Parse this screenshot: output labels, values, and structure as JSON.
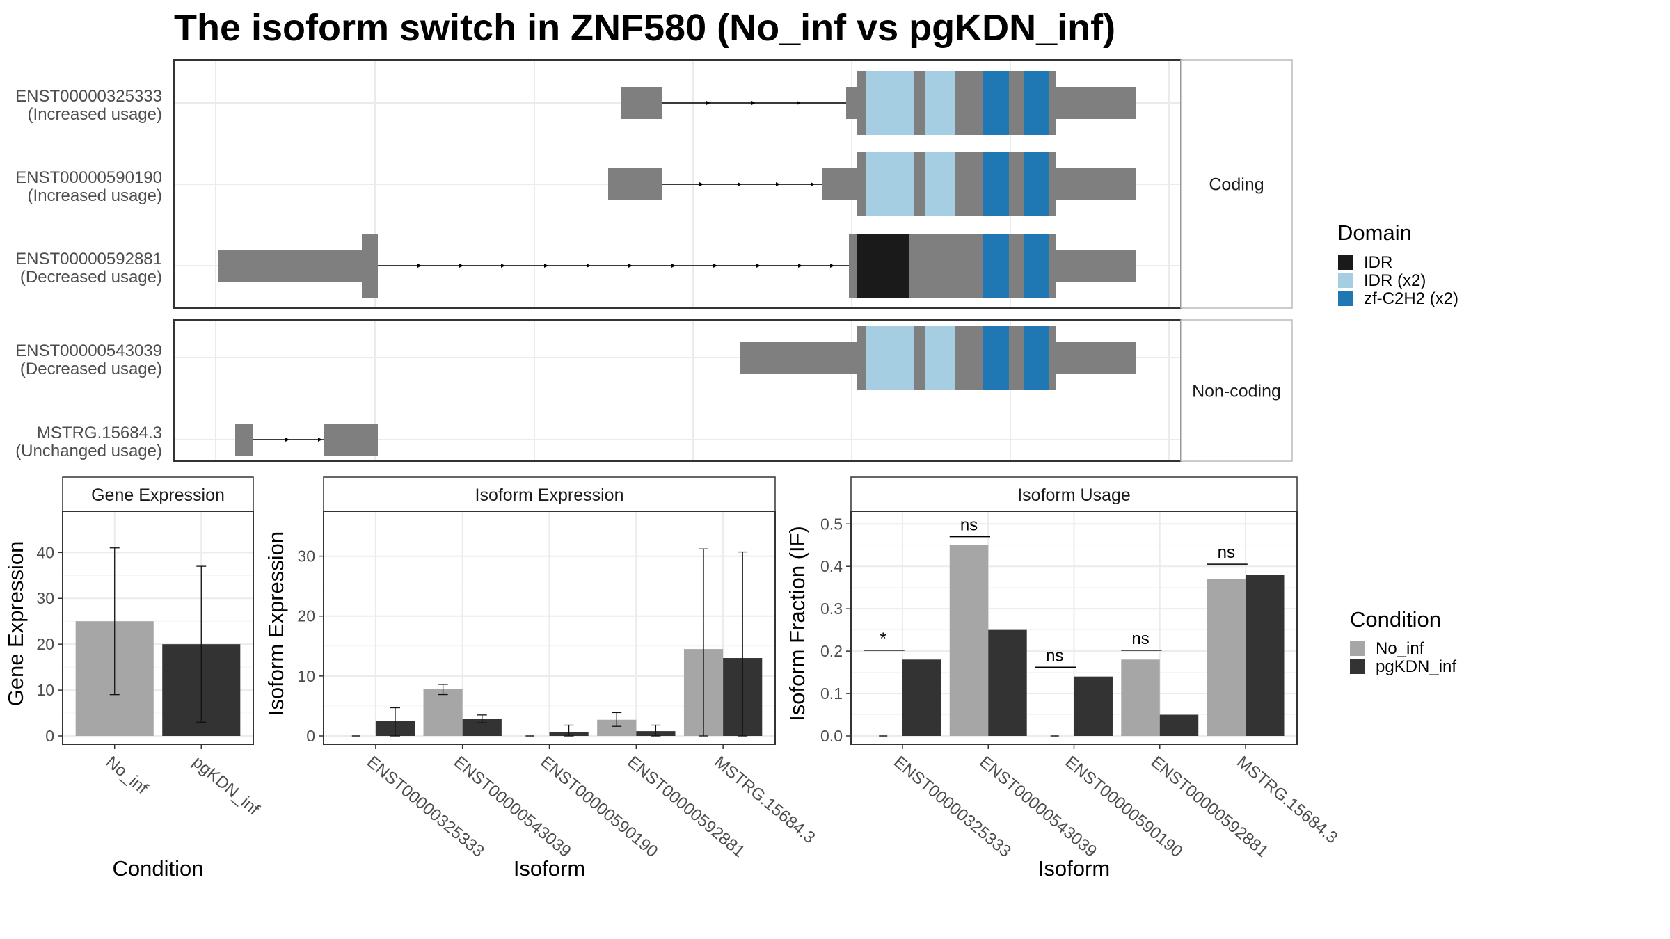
{
  "title": "The isoform switch in ZNF580 (No_inf vs pgKDN_inf)",
  "colors": {
    "intron": "#000000",
    "exon": "#7f7f7f",
    "IDR": "#1a1a1a",
    "IDR (x2)": "#a6cee3",
    "zf-C2H2 (x2)": "#1f78b4",
    "No_inf": "#a6a6a6",
    "pgKDN_inf": "#333333",
    "grid": "#ebebeb",
    "strip_bg": "#ffffff"
  },
  "structure": {
    "facets": [
      {
        "label": "Coding",
        "isoforms": [
          {
            "id": "ENST00000325333",
            "usage": "(Increased usage)"
          },
          {
            "id": "ENST00000590190",
            "usage": "(Increased usage)"
          },
          {
            "id": "ENST00000592881",
            "usage": "(Decreased usage)"
          }
        ]
      },
      {
        "label": "Non-coding",
        "isoforms": [
          {
            "id": "ENST00000543039",
            "usage": "(Decreased usage)"
          },
          {
            "id": "MSTRG.15684.3",
            "usage": "(Unchanged usage)"
          }
        ]
      }
    ],
    "domain_legend": {
      "title": "Domain",
      "items": [
        "IDR",
        "IDR (x2)",
        "zf-C2H2 (x2)"
      ]
    }
  },
  "condition_legend": {
    "title": "Condition",
    "items": [
      "No_inf",
      "pgKDN_inf"
    ]
  },
  "chart_data": [
    {
      "type": "bar",
      "title": "Gene Expression",
      "xlabel": "Condition",
      "ylabel": "Gene Expression",
      "categories": [
        "No_inf",
        "pgKDN_inf"
      ],
      "values": [
        25,
        20
      ],
      "error_low": [
        9,
        3
      ],
      "error_high": [
        41,
        37
      ],
      "ylim": [
        0,
        49
      ],
      "yticks": [
        0,
        10,
        20,
        30,
        40
      ]
    },
    {
      "type": "bar",
      "title": "Isoform Expression",
      "xlabel": "Isoform",
      "ylabel": "Isoform Expression",
      "categories": [
        "ENST00000325333",
        "ENST00000543039",
        "ENST00000590190",
        "ENST00000592881",
        "MSTRG.15684.3"
      ],
      "series": [
        {
          "name": "No_inf",
          "values": [
            0,
            7.8,
            0,
            2.7,
            14.5
          ],
          "error_low": [
            0,
            6.9,
            0,
            1.6,
            0
          ],
          "error_high": [
            0,
            8.6,
            0,
            3.9,
            31.2
          ]
        },
        {
          "name": "pgKDN_inf",
          "values": [
            2.5,
            2.9,
            0.6,
            0.8,
            13.0
          ],
          "error_low": [
            0,
            2.2,
            0,
            0,
            0
          ],
          "error_high": [
            4.7,
            3.5,
            1.8,
            1.8,
            30.7
          ]
        }
      ],
      "ylim": [
        0,
        37.5
      ],
      "yticks": [
        0,
        10,
        20,
        30
      ]
    },
    {
      "type": "bar",
      "title": "Isoform Usage",
      "xlabel": "Isoform",
      "ylabel": "Isoform Fraction (IF)",
      "categories": [
        "ENST00000325333",
        "ENST00000543039",
        "ENST00000590190",
        "ENST00000592881",
        "MSTRG.15684.3"
      ],
      "series": [
        {
          "name": "No_inf",
          "values": [
            0,
            0.45,
            0,
            0.18,
            0.37
          ]
        },
        {
          "name": "pgKDN_inf",
          "values": [
            0.18,
            0.25,
            0.14,
            0.05,
            0.38
          ]
        }
      ],
      "significance": [
        "*",
        "ns",
        "ns",
        "ns",
        "ns"
      ],
      "sig_level": [
        0.202,
        0.47,
        0.162,
        0.202,
        0.405
      ],
      "ylim": [
        0,
        0.53
      ],
      "yticks": [
        0.0,
        0.1,
        0.2,
        0.3,
        0.4,
        0.5
      ]
    }
  ]
}
